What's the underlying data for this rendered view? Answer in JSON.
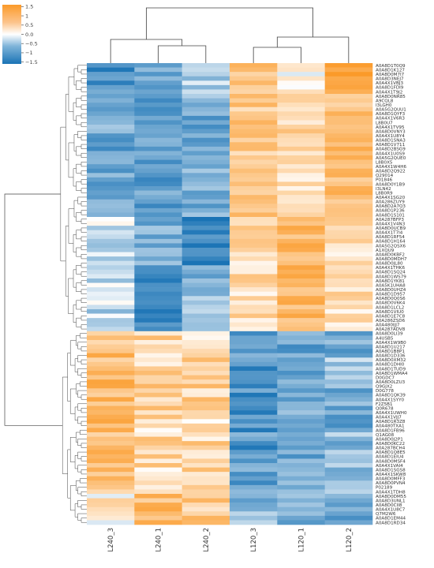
{
  "chart_data": {
    "type": "heatmap",
    "colorbar": {
      "ticks": [
        "1.5",
        "1",
        "0.5",
        "0.0",
        "−0.5",
        "−1",
        "−1.5"
      ],
      "tick_values": [
        1.5,
        1,
        0.5,
        0,
        -0.5,
        -1,
        -1.5
      ],
      "range": [
        -1.6,
        1.6
      ],
      "colors": {
        "low": "#1a73b5",
        "mid": "#ffffff",
        "high": "#fb9a29"
      }
    },
    "columns": [
      "L240_3",
      "L240_1",
      "L240_2",
      "L120_3",
      "L120_1",
      "L120_2"
    ],
    "rows": [
      "A0A8D1T0Q9",
      "A0A8D1K127",
      "A0A8D0M7I7",
      "A0A8D3NEJ7",
      "A0A4X1VBJ3",
      "A0A8D1FDI9",
      "A0A4X1T9J2",
      "A0A8D0NR85",
      "A9CQL8",
      "I3LGH0",
      "A0A5G2QUU1",
      "A0A8D1QYF3",
      "A0A4X1V6R3",
      "L8B0U7",
      "A0A4X1TV95",
      "A0A8D0VNY3",
      "A0A4X1U8Y4",
      "A0A8D1SNA3",
      "A0A8D1V711",
      "A0A8D2BSG9",
      "A0A4X1U0S9",
      "A0A5G2QUE0",
      "L8B0X5",
      "A0A4X1W4H6",
      "A0A8D2Q922",
      "Q29014",
      "P01846",
      "A0A8D0Y1B9",
      "I3LN42",
      "L8B0R9",
      "A0A4X1SG20",
      "A0A286ZUY9",
      "A0A8D2A7Q3",
      "A0A8D1P236",
      "A0A8D1S101",
      "A0A287BFP3",
      "A0A4X1V4N3",
      "A0A8D0UCB9",
      "A0A4X1T7I4",
      "A0A8D1RF54",
      "A0A8D1H164",
      "A0A5G2QSX6",
      "A1XQU9",
      "A0A8D0KBF2",
      "A0A8D0MDH7",
      "A0A8D0JL80",
      "A0A4X1THK6",
      "A0A8D1SQ24",
      "A0A8D1WS79",
      "A0A8D1YK81",
      "A0A5K1UHA8",
      "A0A8D0UHZ4",
      "A0A8D1D957",
      "A0A8D0Q0S6",
      "A0A8D0V6K4",
      "A0A8D1LCL2",
      "A0A8D1VIU0",
      "A0A8D1E7C8",
      "A0A286ZSD6",
      "A0A480IJJ7",
      "A0A287ADV8",
      "A0A8D0LI39",
      "A4USB5",
      "A0A4X1W9B0",
      "A0A8D1U217",
      "A0A8D1B8P1",
      "A0A8D1D336",
      "A0A8D0XM32",
      "A0A8D1DHI0",
      "A0A8D1TUD9",
      "A0A8D1WMA4",
      "D0GDC7",
      "A0A8D0LZU3",
      "Q9GJX2",
      "D0G778",
      "A0A8D1QK39",
      "A0A4X1SYY0",
      "F2Z5B1",
      "Q0R678",
      "A0A4X1UWH0",
      "A0A4X1VJJ7",
      "A0A8D1R3Z8",
      "A0A480TXA1",
      "A0A8D1FB96",
      "Q1AG08",
      "A0A8D0J2P1",
      "A0A8D0KC22",
      "A0A287BCH4",
      "A0A8D1Q8E5",
      "A0A8D1EIU4",
      "A0A8D0MSF4",
      "A0A4X1VAI4",
      "A0A8D1SGS8",
      "A0A4X1SKW8",
      "A0A8D0MFF3",
      "A0A8D0PVN4",
      "P02189",
      "A0A4X1TDH8",
      "A0A8D0DM55",
      "A0A8D3UNL1",
      "A0A8D0CII8",
      "A0A4X1U8C7",
      "Q7M2W6",
      "A0A8D1EM44",
      "A0A8D1RD34"
    ]
  }
}
